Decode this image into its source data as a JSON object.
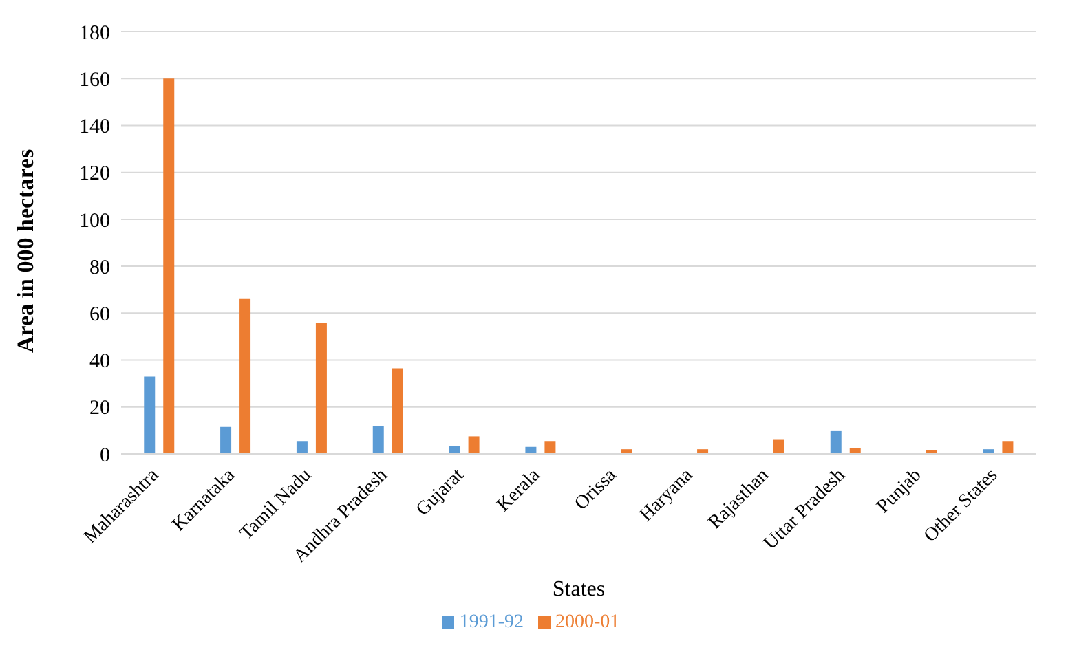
{
  "chart_data": {
    "type": "bar",
    "xlabel": "States",
    "ylabel": "Area in 000 hectares",
    "categories": [
      "Maharashtra",
      "Karnataka",
      "Tamil Nadu",
      "Andhra Pradesh",
      "Gujarat",
      "Kerala",
      "Orissa",
      "Haryana",
      "Rajasthan",
      "Uttar Pradesh",
      "Punjab",
      "Other States"
    ],
    "series": [
      {
        "name": "1991-92",
        "color": "#5b9bd5",
        "values": [
          33,
          11.5,
          5.5,
          12,
          3.5,
          3,
          0,
          0,
          0,
          10,
          0,
          2
        ]
      },
      {
        "name": "2000-01",
        "color": "#ed7d31",
        "values": [
          160,
          66,
          56,
          36.5,
          7.5,
          5.5,
          2,
          2,
          6,
          2.5,
          1.5,
          5.5
        ]
      }
    ],
    "ylim": [
      0,
      180
    ],
    "yticks": [
      0,
      20,
      40,
      60,
      80,
      100,
      120,
      140,
      160,
      180
    ],
    "grid": "y",
    "legend": "bottom"
  }
}
